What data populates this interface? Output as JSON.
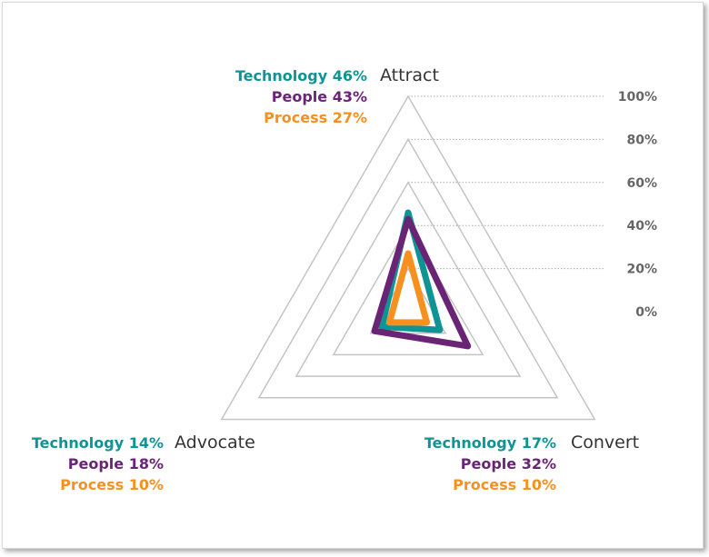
{
  "chart_data": {
    "type": "radar",
    "axes": [
      "Attract",
      "Convert",
      "Advocate"
    ],
    "ticks": [
      "0%",
      "20%",
      "40%",
      "60%",
      "80%",
      "100%"
    ],
    "tick_values": [
      0,
      20,
      40,
      60,
      80,
      100
    ],
    "range": [
      0,
      100
    ],
    "grid": true,
    "series": [
      {
        "name": "Technology",
        "color": "#0e9494",
        "values": [
          46,
          17,
          14
        ]
      },
      {
        "name": "People",
        "color": "#6a2475",
        "values": [
          43,
          32,
          18
        ]
      },
      {
        "name": "Process",
        "color": "#f7901e",
        "values": [
          27,
          10,
          10
        ]
      }
    ],
    "labels": {
      "Attract": [
        "Technology 46%",
        "People 43%",
        "Process 27%"
      ],
      "Convert": [
        "Technology 17%",
        "People 32%",
        "Process 10%"
      ],
      "Advocate": [
        "Technology 14%",
        "People 18%",
        "Process 10%"
      ]
    }
  }
}
